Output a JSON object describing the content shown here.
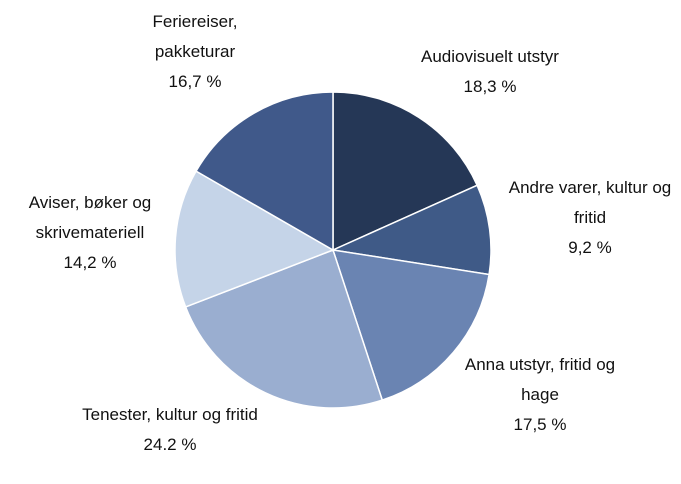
{
  "chart_data": {
    "type": "pie",
    "categories": [
      "Audiovisuelt utstyr",
      "Andre varer, kultur og fritid",
      "Anna utstyr, fritid og hage",
      "Tenester, kultur og fritid",
      "Aviser, bøker og skrivemateriell",
      "Feriereiser, pakketurar"
    ],
    "values": [
      18.3,
      9.2,
      17.5,
      24.2,
      14.2,
      16.7
    ],
    "value_labels": [
      "18,3 %",
      "9,2 %",
      "17,5 %",
      "24.2 %",
      "14,2 %",
      "16,7 %"
    ],
    "colors": [
      "#253756",
      "#3f5a87",
      "#6a84b2",
      "#9aaed0",
      "#c5d4e8",
      "#40598a"
    ]
  }
}
